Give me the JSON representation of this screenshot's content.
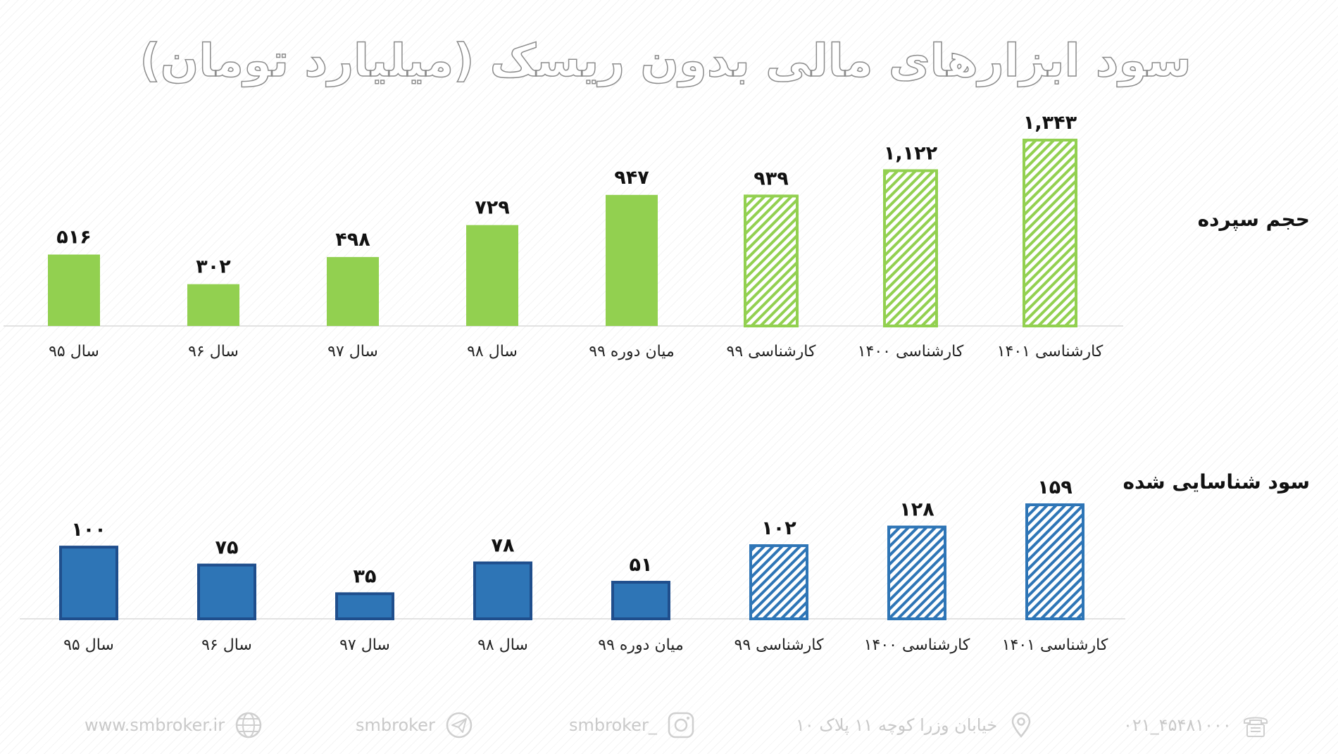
{
  "title": "سود ابزارهای مالی بدون ریسک (میلیارد تومان)",
  "labels": {
    "top": "حجم سپرده",
    "bottom": "سود شناسایی شده"
  },
  "footer": {
    "website": "www.smbroker.ir",
    "telegram": "smbroker",
    "instagram": "smbroker_",
    "address": "خیابان وزرا کوچه ۱۱ پلاک ۱۰",
    "phone": "۰۲۱_۴۵۴۸۱۰۰۰"
  },
  "colors": {
    "green": "#92d050",
    "blue": "#2e75b6",
    "blue_border": "#1f4e8c"
  },
  "chart_data": [
    {
      "type": "bar",
      "title": "حجم سپرده",
      "categories": [
        "سال ۹۵",
        "سال ۹۶",
        "سال ۹۷",
        "سال ۹۸",
        "میان دوره ۹۹",
        "کارشناسی ۹۹",
        "کارشناسی ۱۴۰۰",
        "کارشناسی ۱۴۰۱"
      ],
      "values": [
        516,
        302,
        498,
        729,
        947,
        939,
        1122,
        1343
      ],
      "value_labels": [
        "۵۱۶",
        "۳۰۲",
        "۴۹۸",
        "۷۲۹",
        "۹۴۷",
        "۹۳۹",
        "۱,۱۲۲",
        "۱,۳۴۳"
      ],
      "hatched": [
        false,
        false,
        false,
        false,
        false,
        true,
        true,
        true
      ],
      "color": "#92d050"
    },
    {
      "type": "bar",
      "title": "سود شناسایی شده",
      "categories": [
        "سال ۹۵",
        "سال ۹۶",
        "سال ۹۷",
        "سال ۹۸",
        "میان دوره ۹۹",
        "کارشناسی ۹۹",
        "کارشناسی ۱۴۰۰",
        "کارشناسی ۱۴۰۱"
      ],
      "values": [
        100,
        75,
        35,
        78,
        51,
        102,
        128,
        159
      ],
      "value_labels": [
        "۱۰۰",
        "۷۵",
        "۳۵",
        "۷۸",
        "۵۱",
        "۱۰۲",
        "۱۲۸",
        "۱۵۹"
      ],
      "hatched": [
        false,
        false,
        false,
        false,
        false,
        true,
        true,
        true
      ],
      "color": "#2e75b6"
    }
  ]
}
